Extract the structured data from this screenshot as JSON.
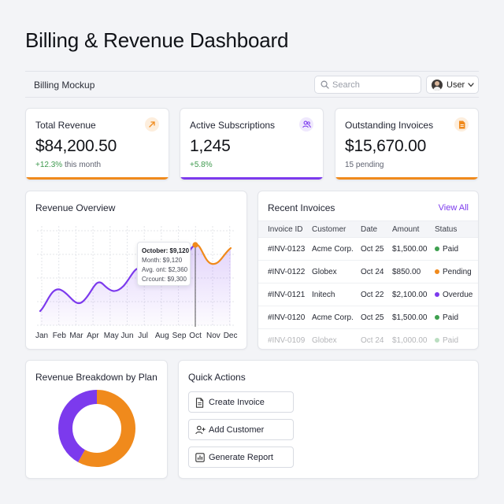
{
  "page": {
    "title": "Billing & Revenue Dashboard"
  },
  "topbar": {
    "brand": "Billing Mockup",
    "search_placeholder": "Search",
    "user_label": "User"
  },
  "kpis": [
    {
      "label": "Total Revenue",
      "value": "$84,200.50",
      "delta": "+12.3%",
      "sub": " this month",
      "icon": "trend-up-icon",
      "accent": "#f08a1c",
      "icon_color": "#f08a1c",
      "icon_bg": "#fdeedd"
    },
    {
      "label": "Active Subscriptions",
      "value": "1,245",
      "delta": "+5.8%",
      "sub": "",
      "icon": "users-icon",
      "accent": "#7c3aed",
      "icon_color": "#7c3aed",
      "icon_bg": "#efe8fd"
    },
    {
      "label": "Outstanding Invoices",
      "value": "$15,670.00",
      "delta": "",
      "sub": "15 pending",
      "icon": "document-icon",
      "accent": "#f08a1c",
      "icon_color": "#f08a1c",
      "icon_bg": "#fdeedd"
    }
  ],
  "overview": {
    "title": "Revenue Overview",
    "tooltip": {
      "title": "October: $9,120",
      "line1": "Month: $9,120",
      "line2": "Avg. ont: $2,360",
      "line3": "Crcount: $9,300"
    }
  },
  "chart_data": {
    "type": "line",
    "categories": [
      "Jan",
      "Feb",
      "Mar",
      "Apr",
      "May",
      "Jun",
      "Jul",
      "Aug",
      "Sep",
      "Oct",
      "Nov",
      "Dec"
    ],
    "highlight": "Oct",
    "colors": {
      "line": "#7c3aed",
      "highlight": "#f08a1c"
    },
    "grid": true
  },
  "invoices": {
    "title": "Recent Invoices",
    "view_all": "View All",
    "columns": [
      "Invoice ID",
      "Customer",
      "Date",
      "Amount",
      "Status"
    ],
    "rows": [
      {
        "id": "#INV-0123",
        "customer": "Acme Corp.",
        "date": "Oct 25",
        "amount": "$1,500.00",
        "status": "Paid",
        "color": "#3ea04f"
      },
      {
        "id": "#INV-0122",
        "customer": "Globex",
        "date": "Oct 24",
        "amount": "$850.00",
        "status": "Pending",
        "color": "#f08a1c"
      },
      {
        "id": "#INV-0121",
        "customer": "Initech",
        "date": "Oct 22",
        "amount": "$2,100.00",
        "status": "Overdue",
        "color": "#7c3aed"
      },
      {
        "id": "#INV-0120",
        "customer": "Acme Corp.",
        "date": "Oct 25",
        "amount": "$1,500.00",
        "status": "Paid",
        "color": "#3ea04f"
      },
      {
        "id": "#INV-0109",
        "customer": "Globex",
        "date": "Oct 24",
        "amount": "$1,000.00",
        "status": "Paid",
        "color": "#3ea04f"
      }
    ]
  },
  "breakdown": {
    "title": "Revenue Breakdown by Plan",
    "segments": [
      {
        "color": "#f08a1c",
        "fraction": 0.58
      },
      {
        "color": "#7c3aed",
        "fraction": 0.42
      }
    ]
  },
  "quick_actions": {
    "title": "Quick Actions",
    "buttons": [
      {
        "label": "Create Invoice",
        "icon": "document-icon"
      },
      {
        "label": "Add Customer",
        "icon": "add-user-icon"
      },
      {
        "label": "Generate Report",
        "icon": "report-chart-icon"
      }
    ]
  }
}
